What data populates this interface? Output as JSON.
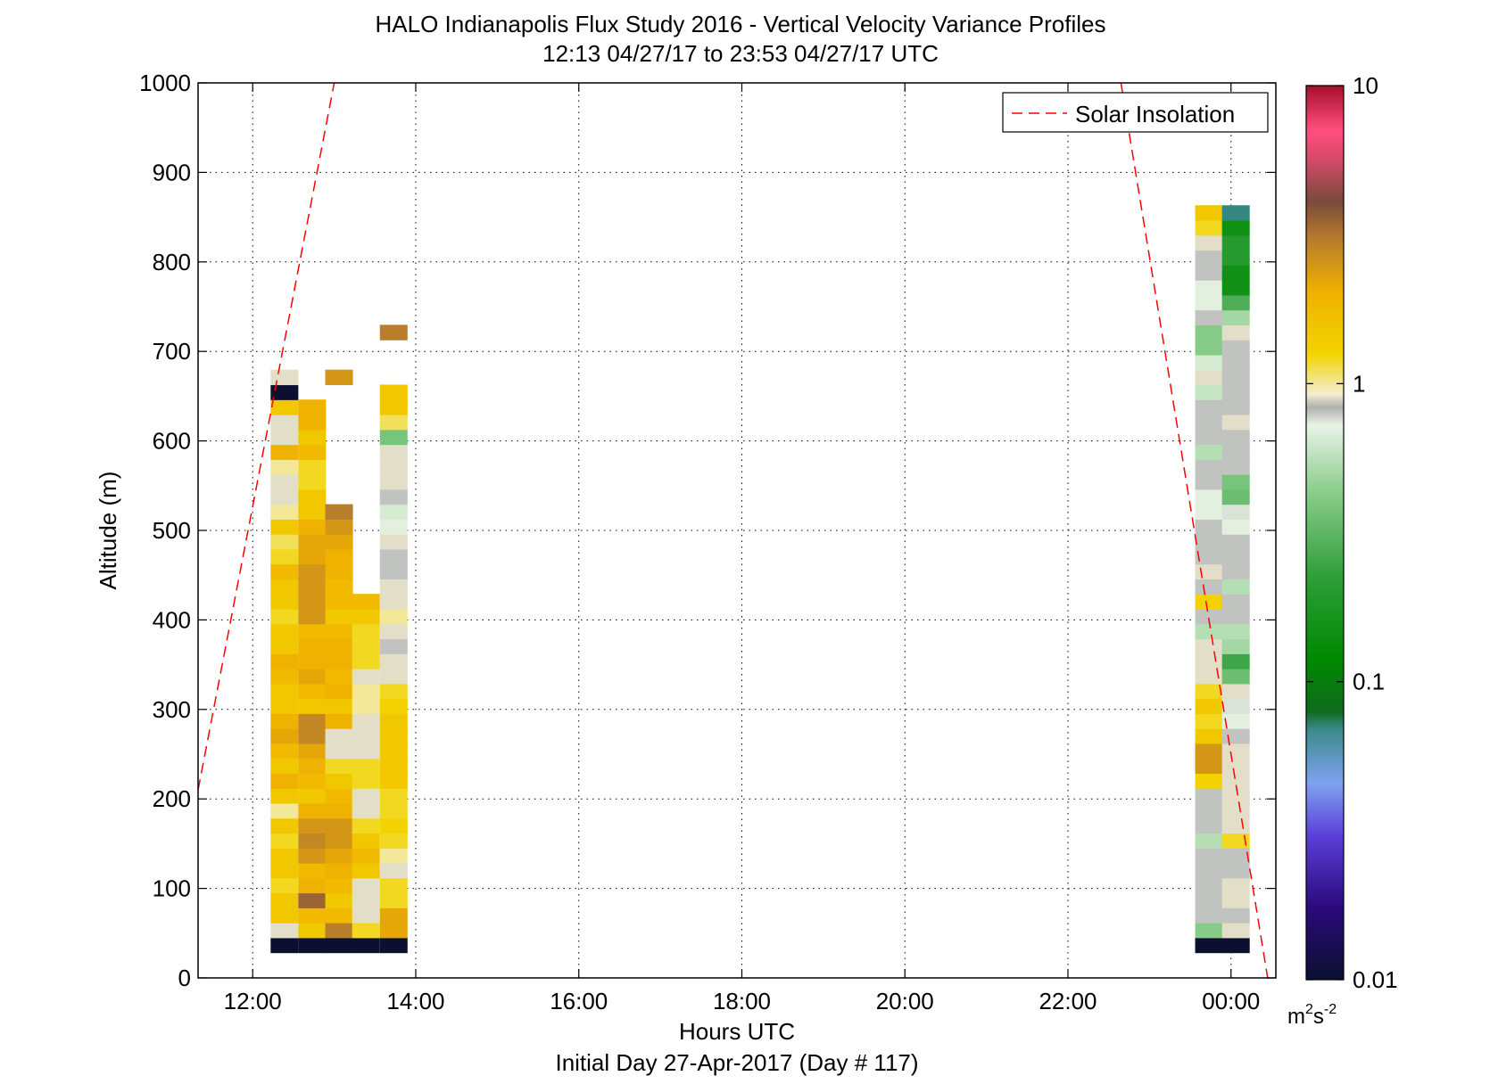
{
  "chart_data": {
    "type": "heatmap",
    "title": "HALO Indianapolis Flux Study 2016 - Vertical Velocity Variance Profiles",
    "subtitle": "12:13 04/27/17 to 23:53 04/27/17  UTC",
    "xlabel": "Hours UTC",
    "xlabel2": "Initial Day 27-Apr-2017 (Day # 117)",
    "ylabel": "Altitude (m)",
    "xlim": [
      11.33,
      24.55
    ],
    "ylim": [
      0,
      1000
    ],
    "x_ticks": [
      12,
      14,
      16,
      18,
      20,
      22,
      24
    ],
    "x_tick_labels": [
      "12:00",
      "14:00",
      "16:00",
      "18:00",
      "20:00",
      "22:00",
      "00:00"
    ],
    "y_ticks": [
      0,
      100,
      200,
      300,
      400,
      500,
      600,
      700,
      800,
      900,
      1000
    ],
    "y_tick_labels": [
      "0",
      "100",
      "200",
      "300",
      "400",
      "500",
      "600",
      "700",
      "800",
      "900",
      "1000"
    ],
    "grid": "dotted",
    "legend": {
      "position": "top-right",
      "entries": [
        {
          "name": "Solar Insolation",
          "style": "dashed",
          "color": "#ff0000"
        }
      ]
    },
    "colorbar": {
      "scale": "log",
      "range": [
        0.01,
        10
      ],
      "tick_values": [
        0.01,
        0.1,
        1,
        10
      ],
      "tick_labels": [
        "0.01",
        "0.1",
        "1",
        "10"
      ],
      "unit_base": "m",
      "unit_exp1": "2",
      "unit_mid": "s",
      "unit_exp2": "-2"
    },
    "bin_width_hours": 0.333,
    "bin_height_m": 16.7,
    "columns": [
      {
        "x": 12.22,
        "y0": 28.3,
        "values": [
          0.005,
          0.9,
          1.5,
          1.5,
          1.2,
          1.5,
          1.5,
          1.2,
          1.5,
          1.0,
          1.5,
          2.0,
          1.5,
          1.8,
          2.2,
          2.0,
          1.5,
          1.5,
          1.8,
          2.0,
          1.5,
          1.5,
          1.2,
          1.5,
          1.5,
          1.8,
          1.2,
          1.1,
          1.5,
          1.0,
          0.9,
          0.9,
          1.0,
          2.0,
          0.9,
          0.9,
          1.5,
          0.0,
          0.9
        ]
      },
      {
        "x": 12.56,
        "y0": 28.3,
        "values": [
          0.005,
          1.5,
          1.8,
          3.5,
          2.0,
          1.8,
          2.5,
          2.8,
          2.5,
          2.0,
          1.5,
          1.8,
          2.0,
          2.2,
          2.8,
          2.8,
          1.5,
          1.8,
          2.2,
          2.0,
          2.0,
          1.8,
          2.5,
          2.5,
          2.5,
          2.5,
          2.2,
          2.2,
          2.0,
          1.5,
          1.5,
          1.2,
          1.2,
          1.8,
          1.5,
          2.0,
          2.0
        ]
      },
      {
        "x": 12.89,
        "y0": 28.3,
        "values": [
          0.005,
          3.0,
          1.8,
          1.5,
          1.8,
          2.0,
          2.2,
          2.5,
          2.5,
          2.0,
          1.8,
          1.5,
          1.2,
          0.9,
          0.9,
          2.0,
          1.5,
          2.0,
          1.8,
          2.0,
          2.0,
          1.8,
          1.5,
          1.8,
          1.8,
          2.0,
          2.0,
          2.2,
          2.5,
          3.0,
          null,
          null,
          null,
          null,
          null,
          null,
          null,
          null,
          2.5
        ]
      },
      {
        "x": 13.22,
        "y0": 28.3,
        "values": [
          0.005,
          1.2,
          0.9,
          0.9,
          0.9,
          1.5,
          1.8,
          1.5,
          1.2,
          0.9,
          0.9,
          1.2,
          1.2,
          0.9,
          0.9,
          0.9,
          1.0,
          1.0,
          0.9,
          1.2,
          1.2,
          1.2,
          1.5,
          1.8
        ]
      },
      {
        "x": 13.56,
        "y0": 28.3,
        "values": [
          0.005,
          2.2,
          2.2,
          1.2,
          1.2,
          0.9,
          1.0,
          1.2,
          1.3,
          1.2,
          1.2,
          1.5,
          1.5,
          1.5,
          1.5,
          1.5,
          1.3,
          1.2,
          0.9,
          0.9,
          0.8,
          0.9,
          1.0,
          0.9,
          0.9,
          0.8,
          0.8,
          0.9,
          0.7,
          0.65,
          0.8,
          0.9,
          0.9,
          0.9,
          0.38,
          1.1,
          1.5,
          1.5,
          null,
          null,
          null,
          3.0
        ]
      },
      {
        "x": 23.56,
        "y0": 28.3,
        "values": [
          0.005,
          0.42,
          0.8,
          0.8,
          0.8,
          0.8,
          0.8,
          0.55,
          0.8,
          0.8,
          0.8,
          1.3,
          2.5,
          2.5,
          1.5,
          1.2,
          1.5,
          1.2,
          0.9,
          0.9,
          0.9,
          0.55,
          0.8,
          1.3,
          0.8,
          0.9,
          0.8,
          0.8,
          0.8,
          0.7,
          0.7,
          0.8,
          0.8,
          0.55,
          0.8,
          0.8,
          0.8,
          0.6,
          0.9,
          0.65,
          0.42,
          0.42,
          0.8,
          0.7,
          0.7,
          0.8,
          0.8,
          0.9,
          1.2,
          1.5
        ]
      },
      {
        "x": 23.89,
        "y0": 28.3,
        "values": [
          0.005,
          0.9,
          0.8,
          0.9,
          0.9,
          0.8,
          0.8,
          1.2,
          0.9,
          0.9,
          0.9,
          0.9,
          0.9,
          0.9,
          0.8,
          0.7,
          0.75,
          0.9,
          0.35,
          0.25,
          0.5,
          0.55,
          0.8,
          0.8,
          0.55,
          0.8,
          0.8,
          0.8,
          0.7,
          0.75,
          0.35,
          0.38,
          0.8,
          0.8,
          0.8,
          0.9,
          0.8,
          0.8,
          0.8,
          0.8,
          0.8,
          0.9,
          0.5,
          0.28,
          0.15,
          0.15,
          0.2,
          0.2,
          0.15,
          0.07
        ]
      }
    ],
    "solar_insolation_lines": [
      {
        "x": [
          11.33,
          13.0
        ],
        "y": [
          210,
          1000
        ]
      },
      {
        "x": [
          22.65,
          24.45
        ],
        "y": [
          1000,
          0
        ]
      }
    ]
  }
}
